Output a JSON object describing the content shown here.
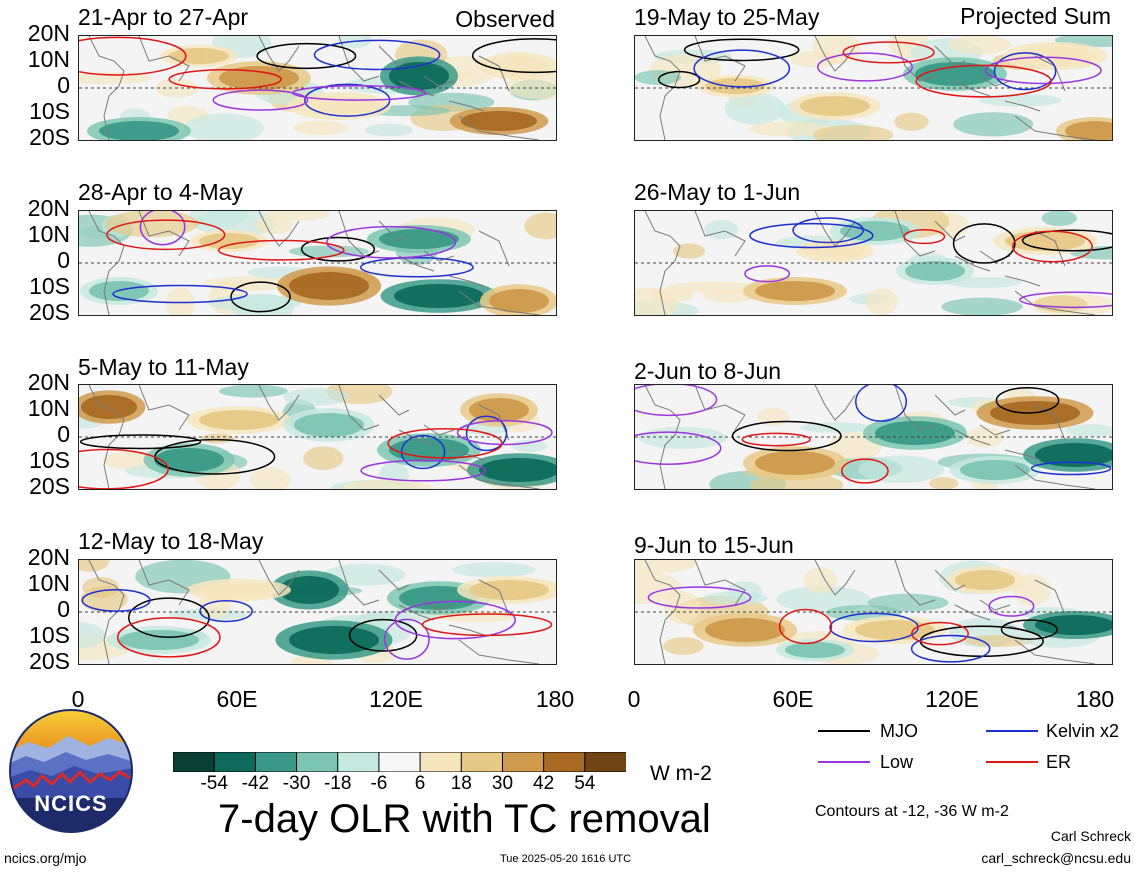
{
  "header": {
    "left_heading": "Observed",
    "right_heading": "Projected Sum"
  },
  "panels": [
    {
      "title": "21-Apr to 27-Apr"
    },
    {
      "title": "28-Apr to 4-May"
    },
    {
      "title": "5-May to 11-May"
    },
    {
      "title": "12-May to 18-May"
    },
    {
      "title": "19-May to 25-May"
    },
    {
      "title": "26-May to 1-Jun"
    },
    {
      "title": "2-Jun to 8-Jun"
    },
    {
      "title": "9-Jun to 15-Jun"
    }
  ],
  "lat_labels": [
    "20N",
    "10N",
    "0",
    "10S",
    "20S"
  ],
  "lon_labels": [
    "0",
    "60E",
    "120E",
    "180"
  ],
  "colorbar": {
    "colors": [
      "#0b3f33",
      "#0e6b5c",
      "#3a9a87",
      "#7cc5b2",
      "#c5e8df",
      "#f7f7f7",
      "#f6e6c0",
      "#e7c987",
      "#cf9a4c",
      "#a86a24",
      "#704415"
    ],
    "labels": [
      "-54",
      "-42",
      "-30",
      "-18",
      "-6",
      "6",
      "18",
      "30",
      "42",
      "54"
    ],
    "units": "W m-2"
  },
  "legend": {
    "items": [
      {
        "label": "MJO",
        "color": "#000000"
      },
      {
        "label": "Kelvin x2",
        "color": "#1e2fd0"
      },
      {
        "label": "Low",
        "color": "#9a35e0"
      },
      {
        "label": "ER",
        "color": "#e01515"
      }
    ],
    "contours_note": "Contours at -12, -36 W m-2"
  },
  "main_title": "7-day OLR with TC removal",
  "logo": {
    "text": "NCICS"
  },
  "footer": {
    "url": "ncics.org/mjo",
    "timestamp": "Tue 2025-05-20 1616 UTC",
    "author": "Carl Schreck",
    "email": "carl_schreck@ncsu.edu"
  }
}
